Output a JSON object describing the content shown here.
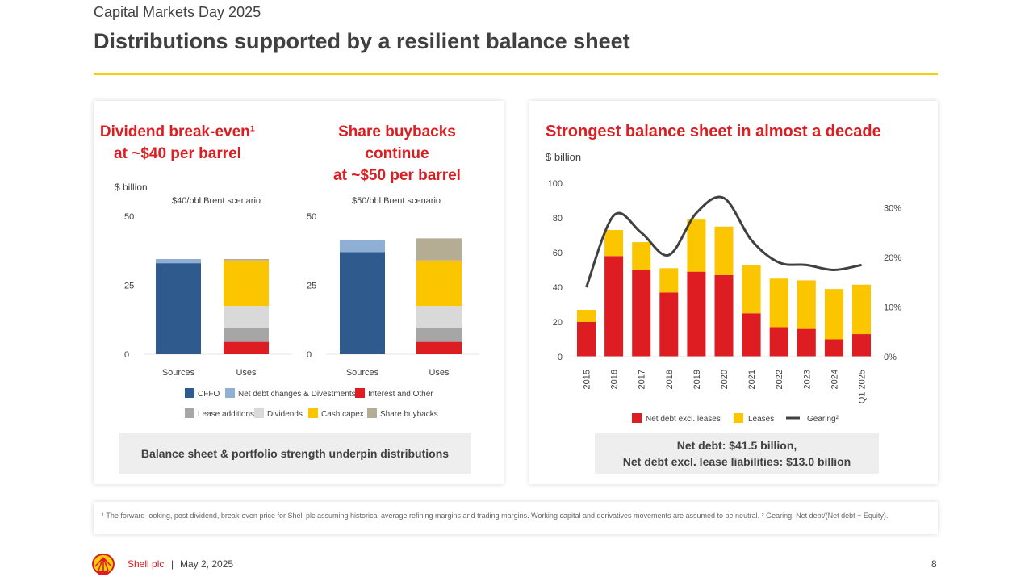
{
  "header": {
    "subtitle": "Capital Markets Day 2025",
    "title": "Distributions supported by a resilient balance sheet"
  },
  "left_panel": {
    "heading1_line1": "Dividend break-even¹",
    "heading1_line2": "at ~$40 per barrel",
    "heading2_line1": "Share buybacks continue",
    "heading2_line2": "at ~$50 per barrel",
    "unit": "$ billion",
    "callout": "Balance sheet & portfolio strength underpin distributions"
  },
  "right_panel": {
    "heading": "Strongest balance sheet in almost a decade",
    "unit": "$ billion",
    "callout_line1": "Net debt: $41.5 billion,",
    "callout_line2": "Net debt excl. lease liabilities: $13.0 billion"
  },
  "colors": {
    "cffo": "#2F5A8E",
    "net_debt_changes": "#8FAFD4",
    "interest": "#DD1D21",
    "lease": "#A6A6A6",
    "dividends": "#D9D9D9",
    "capex": "#FBC500",
    "buybacks": "#B5AC94",
    "net_debt_excl": "#DD1D21",
    "leases": "#FBC500",
    "gearing": "#404040",
    "shell_red": "#DD1D21",
    "shell_yellow": "#FBCE07"
  },
  "chart_data": [
    {
      "type": "bar",
      "stacked": true,
      "title": "$40/bbl Brent scenario",
      "ylabel": "$ billion",
      "ylim": [
        0,
        50
      ],
      "yticks": [
        0,
        25,
        50
      ],
      "categories": [
        "Sources",
        "Uses"
      ],
      "series": [
        {
          "name": "CFFO",
          "values": [
            33,
            0
          ]
        },
        {
          "name": "Net debt changes & Divestments",
          "values": [
            1.5,
            0
          ]
        },
        {
          "name": "Interest and Other",
          "values": [
            0,
            4.5
          ]
        },
        {
          "name": "Lease additions",
          "values": [
            0,
            5
          ]
        },
        {
          "name": "Dividends",
          "values": [
            0,
            8
          ]
        },
        {
          "name": "Cash capex",
          "values": [
            0,
            16.5
          ]
        },
        {
          "name": "Share buybacks",
          "values": [
            0,
            0.5
          ]
        }
      ]
    },
    {
      "type": "bar",
      "stacked": true,
      "title": "$50/bbl Brent scenario",
      "ylim": [
        0,
        50
      ],
      "yticks": [
        0,
        25,
        50
      ],
      "categories": [
        "Sources",
        "Uses"
      ],
      "series": [
        {
          "name": "CFFO",
          "values": [
            37,
            0
          ]
        },
        {
          "name": "Net debt changes & Divestments",
          "values": [
            4.5,
            0
          ]
        },
        {
          "name": "Interest and Other",
          "values": [
            0,
            4.5
          ]
        },
        {
          "name": "Lease additions",
          "values": [
            0,
            5
          ]
        },
        {
          "name": "Dividends",
          "values": [
            0,
            8
          ]
        },
        {
          "name": "Cash capex",
          "values": [
            0,
            16.5
          ]
        },
        {
          "name": "Share buybacks",
          "values": [
            0,
            8
          ]
        }
      ]
    },
    {
      "type": "bar",
      "stacked": true,
      "ylabel": "$ billion",
      "ylim": [
        0,
        100
      ],
      "yticks": [
        0,
        20,
        40,
        60,
        80,
        100
      ],
      "y2lim": [
        0,
        35
      ],
      "y2ticks": [
        "0%",
        "10%",
        "20%",
        "30%"
      ],
      "y2tick_values": [
        0,
        10,
        20,
        30
      ],
      "categories": [
        "2015",
        "2016",
        "2017",
        "2018",
        "2019",
        "2020",
        "2021",
        "2022",
        "2023",
        "2024",
        "Q1 2025"
      ],
      "series": [
        {
          "name": "Net debt excl. leases",
          "values": [
            20,
            58,
            50,
            37,
            49,
            47,
            25,
            17,
            16,
            10,
            13
          ]
        },
        {
          "name": "Leases",
          "values": [
            7,
            15,
            16,
            14,
            30,
            28,
            28,
            28,
            28,
            29,
            28.5
          ]
        },
        {
          "name": "Gearing²",
          "type": "line",
          "axis": "secondary",
          "values": [
            14,
            28.5,
            25,
            20.5,
            29,
            32,
            23.5,
            19,
            18.5,
            17.5,
            18.5
          ]
        }
      ]
    }
  ],
  "legend_left": [
    {
      "key": "cffo",
      "label": "CFFO"
    },
    {
      "key": "net_debt_changes",
      "label": "Net debt changes & Divestments"
    },
    {
      "key": "interest",
      "label": "Interest and Other"
    },
    {
      "key": "lease",
      "label": "Lease additions"
    },
    {
      "key": "dividends",
      "label": "Dividends"
    },
    {
      "key": "capex",
      "label": "Cash capex"
    },
    {
      "key": "buybacks",
      "label": "Share buybacks"
    }
  ],
  "footnote": "¹ The forward-looking, post dividend, break-even price for Shell plc assuming historical average refining margins and trading margins. Working capital and derivatives movements are assumed to be neutral. ² Gearing: Net debt/(Net debt + Equity).",
  "footer": {
    "company": "Shell plc",
    "separator": "|",
    "date": "May 2, 2025",
    "page": "8"
  }
}
